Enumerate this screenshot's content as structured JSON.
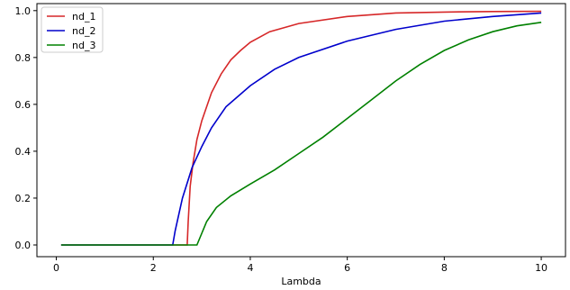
{
  "chart_data": {
    "type": "line",
    "title": "",
    "xlabel": "Lambda",
    "ylabel": "",
    "xlim": [
      -0.4,
      10.5
    ],
    "ylim": [
      -0.05,
      1.03
    ],
    "x_ticks": [
      0,
      2,
      4,
      6,
      8,
      10
    ],
    "y_ticks": [
      0.0,
      0.2,
      0.4,
      0.6,
      0.8,
      1.0
    ],
    "x_tick_labels": [
      "0",
      "2",
      "4",
      "6",
      "8",
      "10"
    ],
    "y_tick_labels": [
      "0.0",
      "0.2",
      "0.4",
      "0.6",
      "0.8",
      "1.0"
    ],
    "grid": false,
    "legend_position": "upper-left",
    "series": [
      {
        "name": "nd_1",
        "color": "#d62728",
        "points": [
          [
            0.1,
            0
          ],
          [
            1,
            0
          ],
          [
            2,
            0
          ],
          [
            2.7,
            0
          ],
          [
            2.72,
            0.1
          ],
          [
            2.76,
            0.25
          ],
          [
            2.82,
            0.35
          ],
          [
            2.9,
            0.45
          ],
          [
            3.0,
            0.53
          ],
          [
            3.2,
            0.65
          ],
          [
            3.4,
            0.73
          ],
          [
            3.6,
            0.79
          ],
          [
            3.8,
            0.83
          ],
          [
            4.0,
            0.865
          ],
          [
            4.4,
            0.91
          ],
          [
            5.0,
            0.945
          ],
          [
            6.0,
            0.975
          ],
          [
            7.0,
            0.99
          ],
          [
            8.0,
            0.994
          ],
          [
            9.0,
            0.996
          ],
          [
            10.0,
            0.997
          ]
        ]
      },
      {
        "name": "nd_2",
        "color": "#0000cc",
        "points": [
          [
            0.1,
            0
          ],
          [
            1,
            0
          ],
          [
            2,
            0
          ],
          [
            2.4,
            0
          ],
          [
            2.45,
            0.06
          ],
          [
            2.6,
            0.2
          ],
          [
            2.8,
            0.33
          ],
          [
            3.0,
            0.42
          ],
          [
            3.2,
            0.5
          ],
          [
            3.5,
            0.59
          ],
          [
            4.0,
            0.68
          ],
          [
            4.5,
            0.75
          ],
          [
            5.0,
            0.8
          ],
          [
            6.0,
            0.87
          ],
          [
            7.0,
            0.92
          ],
          [
            8.0,
            0.955
          ],
          [
            9.0,
            0.975
          ],
          [
            10.0,
            0.99
          ]
        ]
      },
      {
        "name": "nd_3",
        "color": "#008000",
        "points": [
          [
            0.1,
            0
          ],
          [
            1,
            0
          ],
          [
            2,
            0
          ],
          [
            2.9,
            0
          ],
          [
            3.0,
            0.05
          ],
          [
            3.1,
            0.1
          ],
          [
            3.3,
            0.16
          ],
          [
            3.6,
            0.21
          ],
          [
            4.0,
            0.26
          ],
          [
            4.5,
            0.32
          ],
          [
            5.0,
            0.39
          ],
          [
            5.5,
            0.46
          ],
          [
            6.0,
            0.54
          ],
          [
            6.5,
            0.62
          ],
          [
            7.0,
            0.7
          ],
          [
            7.5,
            0.77
          ],
          [
            8.0,
            0.83
          ],
          [
            8.5,
            0.875
          ],
          [
            9.0,
            0.91
          ],
          [
            9.5,
            0.935
          ],
          [
            10.0,
            0.95
          ]
        ]
      }
    ]
  }
}
